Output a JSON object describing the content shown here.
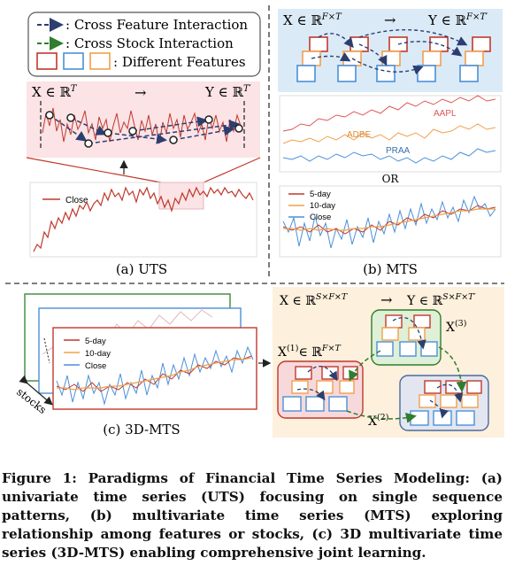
{
  "legend": {
    "cross_feature": ": Cross Feature Interaction",
    "cross_stock": ": Cross Stock Interaction",
    "features": ": Different Features"
  },
  "uts": {
    "input": "X ∈ ℝ",
    "input_sup": "T",
    "output": "Y ∈ ℝ",
    "output_sup": "T′",
    "series_label": "Close",
    "caption": "(a) UTS"
  },
  "mts": {
    "input": "X ∈ ℝ",
    "input_sup": "F×T",
    "output": "Y ∈ ℝ",
    "output_sup": "F×T′",
    "stock_labels": [
      "AAPL",
      "ADBE",
      "PRAA"
    ],
    "or": "OR",
    "series_labels": [
      "5-day",
      "10-day",
      "Close"
    ],
    "caption": "(b) MTS"
  },
  "mts3d": {
    "series_labels": [
      "5-day",
      "10-day",
      "Close"
    ],
    "axis_label": "stocks",
    "caption": "(c) 3D-MTS"
  },
  "right3d": {
    "input": "X ∈ ℝ",
    "input_sup": "S×F×T",
    "output": "Y ∈ ℝ",
    "output_sup": "S×F×T′",
    "x1": "X",
    "x1_sup": "(1)",
    "x1_rest": "∈ ℝ",
    "x1_rest_sup": "F×T",
    "x2": "X",
    "x2_sup": "(2)",
    "x3": "X",
    "x3_sup": "(3)"
  },
  "arrow": "→",
  "caption": "Figure 1: Paradigms of Financial Time Series Modeling: (a) univariate time series (UTS) focusing on single sequence patterns, (b) multivariate time series (MTS) exploring relationship among features or stocks, (c) 3D multivariate time series (3D-MTS) enabling comprehensive joint learning.",
  "colors": {
    "red": "#c0392b",
    "blue": "#4a90d9",
    "orange": "#f0a04b",
    "green": "#3a8a3a",
    "navy": "#2c3e70",
    "pink_bg": "#fbe3e6",
    "blue_bg": "#dbeaf7",
    "peach_bg": "#fdf0dc"
  }
}
